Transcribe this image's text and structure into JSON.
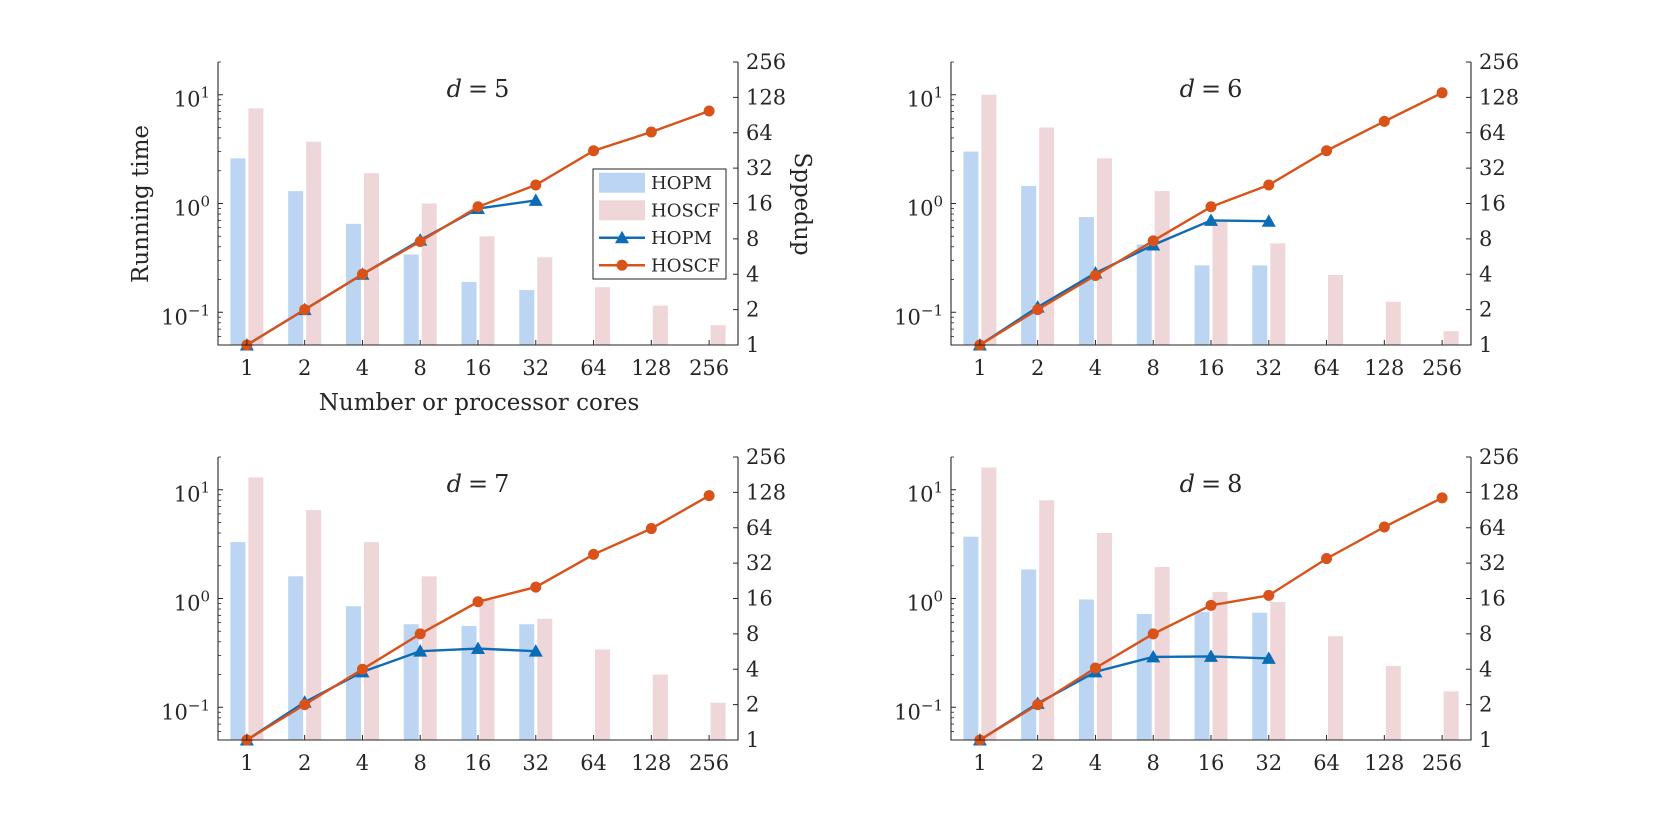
{
  "figure": {
    "left_ylabel": "Running time",
    "right_ylabel": "Sppedup",
    "xlabel": "Number or processor cores"
  },
  "legend": {
    "placement": "right-middle of first panel",
    "entries": [
      {
        "label": "HOPM",
        "kind": "bar",
        "series": "HOPM"
      },
      {
        "label": "HOSCF",
        "kind": "bar",
        "series": "HOSCF"
      },
      {
        "label": "HOPM",
        "kind": "line",
        "series": "HOPM",
        "marker": "triangle"
      },
      {
        "label": "HOSCF",
        "kind": "line",
        "series": "HOSCF",
        "marker": "circle"
      }
    ]
  },
  "colors": {
    "hopm_bar": "#bcd5f2",
    "hoscf_bar": "#efd6d8",
    "hopm_line": "#0d6cb6",
    "hoscf_line": "#d95219",
    "axis": "#262626"
  },
  "chart_data": [
    {
      "type": "bar+line",
      "title": "d = 5",
      "categories": [
        "1",
        "2",
        "4",
        "8",
        "16",
        "32",
        "64",
        "128",
        "256"
      ],
      "left_axis": {
        "label": "Running time",
        "scale": "log",
        "ylim": [
          0.05,
          20
        ],
        "ticks": [
          "10^-1",
          "10^0",
          "10^1"
        ]
      },
      "right_axis": {
        "label": "Sppedup",
        "scale": "log2",
        "ylim": [
          1,
          256
        ],
        "ticks": [
          "1",
          "2",
          "4",
          "8",
          "16",
          "32",
          "64",
          "128",
          "256"
        ]
      },
      "bars": [
        {
          "name": "HOPM",
          "axis": "left",
          "values": [
            2.6,
            1.3,
            0.65,
            0.34,
            0.19,
            0.16,
            null,
            null,
            null
          ]
        },
        {
          "name": "HOSCF",
          "axis": "left",
          "values": [
            7.5,
            3.7,
            1.9,
            1.0,
            0.5,
            0.32,
            0.17,
            0.115,
            0.076
          ]
        }
      ],
      "lines": [
        {
          "name": "HOPM",
          "axis": "right",
          "marker": "triangle",
          "values": [
            1,
            2,
            4,
            7.8,
            14.5,
            17,
            null,
            null,
            null
          ]
        },
        {
          "name": "HOSCF",
          "axis": "right",
          "marker": "circle",
          "values": [
            1,
            2,
            4,
            7.6,
            15,
            23,
            45,
            65,
            98
          ]
        }
      ],
      "grid": false
    },
    {
      "type": "bar+line",
      "title": "d = 6",
      "categories": [
        "1",
        "2",
        "4",
        "8",
        "16",
        "32",
        "64",
        "128",
        "256"
      ],
      "left_axis": {
        "label": "",
        "scale": "log",
        "ylim": [
          0.05,
          20
        ],
        "ticks": [
          "10^-1",
          "10^0",
          "10^1"
        ]
      },
      "right_axis": {
        "label": "",
        "scale": "log2",
        "ylim": [
          1,
          256
        ],
        "ticks": [
          "1",
          "2",
          "4",
          "8",
          "16",
          "32",
          "64",
          "128",
          "256"
        ]
      },
      "bars": [
        {
          "name": "HOPM",
          "axis": "left",
          "values": [
            3.0,
            1.45,
            0.75,
            0.42,
            0.27,
            0.27,
            null,
            null,
            null
          ]
        },
        {
          "name": "HOSCF",
          "axis": "left",
          "values": [
            10,
            5.0,
            2.6,
            1.3,
            0.7,
            0.43,
            0.22,
            0.125,
            0.067
          ]
        }
      ],
      "lines": [
        {
          "name": "HOPM",
          "axis": "right",
          "marker": "triangle",
          "values": [
            1,
            2.1,
            4.1,
            7.1,
            11.5,
            11.3,
            null,
            null,
            null
          ]
        },
        {
          "name": "HOSCF",
          "axis": "right",
          "marker": "circle",
          "values": [
            1,
            2,
            3.9,
            7.7,
            15,
            23,
            45,
            80,
            140
          ]
        }
      ],
      "grid": false
    },
    {
      "type": "bar+line",
      "title": "d = 7",
      "categories": [
        "1",
        "2",
        "4",
        "8",
        "16",
        "32",
        "64",
        "128",
        "256"
      ],
      "left_axis": {
        "label": "",
        "scale": "log",
        "ylim": [
          0.05,
          20
        ],
        "ticks": [
          "10^-1",
          "10^0",
          "10^1"
        ]
      },
      "right_axis": {
        "label": "",
        "scale": "log2",
        "ylim": [
          1,
          256
        ],
        "ticks": [
          "1",
          "2",
          "4",
          "8",
          "16",
          "32",
          "64",
          "128",
          "256"
        ]
      },
      "bars": [
        {
          "name": "HOPM",
          "axis": "left",
          "values": [
            3.3,
            1.6,
            0.85,
            0.58,
            0.56,
            0.58,
            null,
            null,
            null
          ]
        },
        {
          "name": "HOSCF",
          "axis": "left",
          "values": [
            13,
            6.5,
            3.3,
            1.6,
            0.97,
            0.65,
            0.34,
            0.2,
            0.11
          ]
        }
      ],
      "lines": [
        {
          "name": "HOPM",
          "axis": "right",
          "marker": "triangle",
          "values": [
            1,
            2.1,
            3.8,
            5.7,
            6.0,
            5.7,
            null,
            null,
            null
          ]
        },
        {
          "name": "HOSCF",
          "axis": "right",
          "marker": "circle",
          "values": [
            1,
            2,
            4,
            8,
            15,
            20,
            38,
            63,
            120
          ]
        }
      ],
      "grid": false
    },
    {
      "type": "bar+line",
      "title": "d = 8",
      "categories": [
        "1",
        "2",
        "4",
        "8",
        "16",
        "32",
        "64",
        "128",
        "256"
      ],
      "left_axis": {
        "label": "",
        "scale": "log",
        "ylim": [
          0.05,
          20
        ],
        "ticks": [
          "10^-1",
          "10^0",
          "10^1"
        ]
      },
      "right_axis": {
        "label": "",
        "scale": "log2",
        "ylim": [
          1,
          256
        ],
        "ticks": [
          "1",
          "2",
          "4",
          "8",
          "16",
          "32",
          "64",
          "128",
          "256"
        ]
      },
      "bars": [
        {
          "name": "HOPM",
          "axis": "left",
          "values": [
            3.7,
            1.85,
            0.98,
            0.72,
            0.75,
            0.74,
            null,
            null,
            null
          ]
        },
        {
          "name": "HOSCF",
          "axis": "left",
          "values": [
            16,
            8.0,
            4.0,
            1.95,
            1.15,
            0.93,
            0.45,
            0.24,
            0.14
          ]
        }
      ],
      "lines": [
        {
          "name": "HOPM",
          "axis": "right",
          "marker": "triangle",
          "values": [
            1,
            2.05,
            3.8,
            5.1,
            5.15,
            4.95,
            null,
            null,
            null
          ]
        },
        {
          "name": "HOSCF",
          "axis": "right",
          "marker": "circle",
          "values": [
            1,
            2,
            4.1,
            8,
            14,
            17,
            35,
            65,
            115
          ]
        }
      ],
      "grid": false
    }
  ]
}
